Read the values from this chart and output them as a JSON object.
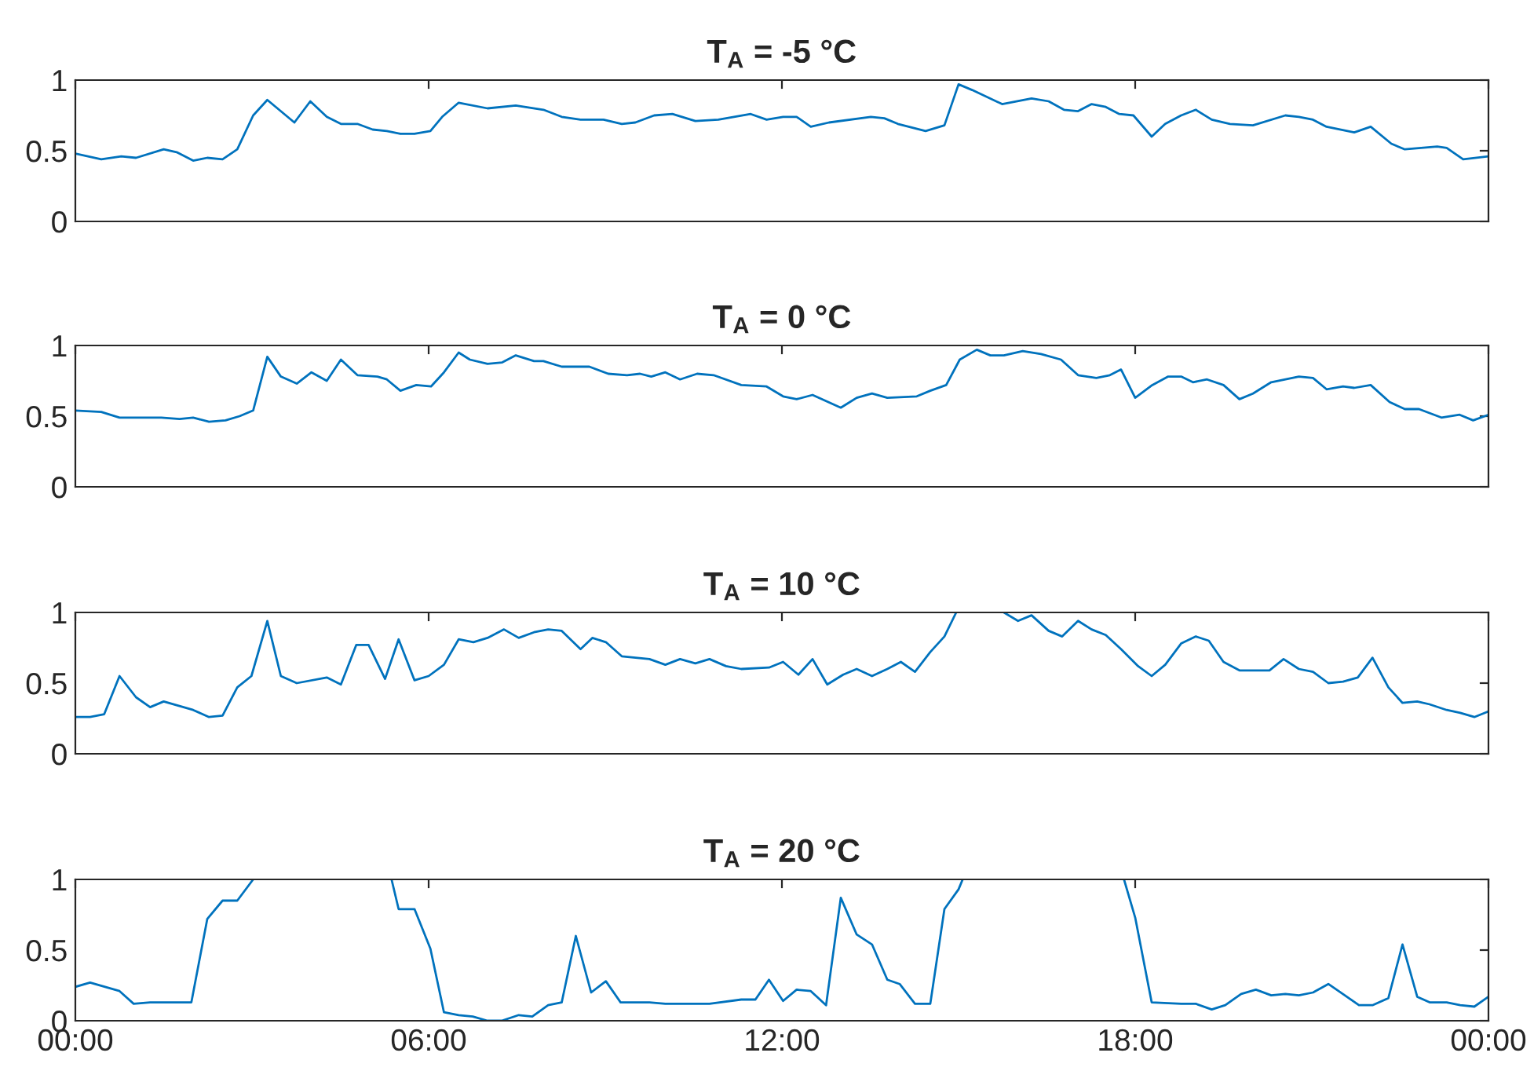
{
  "chart_data": [
    {
      "type": "line",
      "title": "T$_{A}$ = -5 °C",
      "xlim": [
        0,
        24
      ],
      "xticks": [
        {
          "value": 0,
          "label": null
        },
        {
          "value": 6,
          "label": null
        },
        {
          "value": 12,
          "label": null
        },
        {
          "value": 18,
          "label": null
        },
        {
          "value": 24,
          "label": null
        }
      ],
      "ylim": [
        0,
        1
      ],
      "yticks": [
        0,
        0.5,
        1
      ],
      "tick_labels": "y",
      "x": [
        0,
        0.44,
        0.78,
        1.03,
        1.5,
        1.72,
        2.0,
        2.24,
        2.5,
        2.75,
        3.02,
        3.26,
        3.72,
        3.99,
        4.27,
        4.51,
        4.79,
        5.05,
        5.29,
        5.52,
        5.76,
        6.03,
        6.23,
        6.51,
        7.0,
        7.48,
        7.95,
        8.26,
        8.58,
        8.97,
        9.28,
        9.51,
        9.83,
        10.14,
        10.53,
        10.92,
        11.47,
        11.74,
        12.02,
        12.25,
        12.49,
        12.8,
        13.51,
        13.74,
        13.97,
        14.44,
        14.76,
        15.0,
        15.23,
        15.74,
        16.24,
        16.53,
        16.79,
        17.03,
        17.26,
        17.5,
        17.73,
        17.97,
        18.28,
        18.51,
        18.78,
        19.03,
        19.3,
        19.61,
        20.0,
        20.55,
        20.78,
        21.02,
        21.25,
        21.72,
        22.0,
        22.35,
        22.58,
        23.13,
        23.29,
        23.57,
        24.0
      ],
      "series": [
        {
          "color": "#0072bd",
          "values": [
            0.48,
            0.44,
            0.46,
            0.45,
            0.51,
            0.49,
            0.43,
            0.45,
            0.44,
            0.51,
            0.75,
            0.86,
            0.7,
            0.85,
            0.74,
            0.69,
            0.69,
            0.65,
            0.64,
            0.62,
            0.62,
            0.64,
            0.74,
            0.84,
            0.8,
            0.82,
            0.79,
            0.74,
            0.72,
            0.72,
            0.69,
            0.7,
            0.75,
            0.76,
            0.71,
            0.72,
            0.76,
            0.72,
            0.74,
            0.74,
            0.67,
            0.7,
            0.74,
            0.73,
            0.69,
            0.64,
            0.68,
            0.97,
            0.93,
            0.83,
            0.87,
            0.85,
            0.79,
            0.78,
            0.83,
            0.81,
            0.76,
            0.75,
            0.6,
            0.69,
            0.75,
            0.79,
            0.72,
            0.69,
            0.68,
            0.75,
            0.74,
            0.72,
            0.67,
            0.63,
            0.67,
            0.55,
            0.51,
            0.53,
            0.52,
            0.44,
            0.46
          ]
        }
      ]
    },
    {
      "type": "line",
      "title": "T$_{A}$ = 0 °C",
      "xlim": [
        0,
        24
      ],
      "xticks": [
        {
          "value": 0,
          "label": null
        },
        {
          "value": 6,
          "label": null
        },
        {
          "value": 12,
          "label": null
        },
        {
          "value": 18,
          "label": null
        },
        {
          "value": 24,
          "label": null
        }
      ],
      "ylim": [
        0,
        1
      ],
      "yticks": [
        0,
        0.5,
        1
      ],
      "tick_labels": "y",
      "x": [
        0,
        0.44,
        0.75,
        1.46,
        1.77,
        2.0,
        2.27,
        2.55,
        2.79,
        3.02,
        3.26,
        3.49,
        3.76,
        4.01,
        4.27,
        4.51,
        4.79,
        5.13,
        5.29,
        5.52,
        5.79,
        6.04,
        6.26,
        6.51,
        6.7,
        7.0,
        7.25,
        7.48,
        7.79,
        7.95,
        8.26,
        8.73,
        9.05,
        9.37,
        9.59,
        9.78,
        10.02,
        10.27,
        10.56,
        10.84,
        11.31,
        11.74,
        12.02,
        12.25,
        12.52,
        13.0,
        13.27,
        13.53,
        13.79,
        14.29,
        14.52,
        14.79,
        15.02,
        15.31,
        15.54,
        15.77,
        16.09,
        16.4,
        16.74,
        17.03,
        17.34,
        17.57,
        17.76,
        18.0,
        18.29,
        18.56,
        18.78,
        18.98,
        19.22,
        19.5,
        19.77,
        20.0,
        20.31,
        20.78,
        21.02,
        21.25,
        21.53,
        21.72,
        22.0,
        22.32,
        22.58,
        22.82,
        23.2,
        23.51,
        23.74,
        24.0
      ],
      "series": [
        {
          "color": "#0072bd",
          "values": [
            0.54,
            0.53,
            0.49,
            0.49,
            0.48,
            0.49,
            0.46,
            0.47,
            0.5,
            0.54,
            0.92,
            0.78,
            0.73,
            0.81,
            0.75,
            0.9,
            0.79,
            0.78,
            0.76,
            0.68,
            0.72,
            0.71,
            0.81,
            0.95,
            0.9,
            0.87,
            0.88,
            0.93,
            0.89,
            0.89,
            0.85,
            0.85,
            0.8,
            0.79,
            0.8,
            0.78,
            0.81,
            0.76,
            0.8,
            0.79,
            0.72,
            0.71,
            0.64,
            0.62,
            0.65,
            0.56,
            0.63,
            0.66,
            0.63,
            0.64,
            0.68,
            0.72,
            0.9,
            0.97,
            0.93,
            0.93,
            0.96,
            0.94,
            0.9,
            0.79,
            0.77,
            0.79,
            0.83,
            0.63,
            0.72,
            0.78,
            0.78,
            0.74,
            0.76,
            0.72,
            0.62,
            0.66,
            0.74,
            0.78,
            0.77,
            0.69,
            0.71,
            0.7,
            0.72,
            0.6,
            0.55,
            0.55,
            0.49,
            0.51,
            0.47,
            0.51
          ]
        }
      ]
    },
    {
      "type": "line",
      "title": "T$_{A}$ = 10 °C",
      "xlim": [
        0,
        24
      ],
      "xticks": [
        {
          "value": 0,
          "label": null
        },
        {
          "value": 6,
          "label": null
        },
        {
          "value": 12,
          "label": null
        },
        {
          "value": 18,
          "label": null
        },
        {
          "value": 24,
          "label": null
        }
      ],
      "ylim": [
        0,
        1
      ],
      "yticks": [
        0,
        0.5,
        1
      ],
      "tick_labels": "y",
      "x": [
        0,
        0.25,
        0.49,
        0.75,
        1.03,
        1.27,
        1.5,
        2.0,
        2.27,
        2.5,
        2.75,
        2.99,
        3.26,
        3.49,
        3.76,
        4.27,
        4.51,
        4.77,
        4.98,
        5.26,
        5.49,
        5.76,
        6.0,
        6.26,
        6.51,
        6.76,
        7.0,
        7.28,
        7.53,
        7.79,
        8.03,
        8.26,
        8.58,
        8.78,
        9.01,
        9.28,
        9.75,
        10.02,
        10.27,
        10.53,
        10.77,
        11.05,
        11.31,
        11.78,
        12.02,
        12.28,
        12.52,
        12.77,
        13.04,
        13.27,
        13.53,
        13.79,
        14.02,
        14.26,
        14.52,
        14.76,
        14.96,
        15.4,
        15.77,
        16.01,
        16.24,
        16.53,
        16.76,
        17.03,
        17.26,
        17.5,
        17.76,
        18.05,
        18.28,
        18.51,
        18.78,
        19.03,
        19.25,
        19.5,
        19.77,
        20.28,
        20.52,
        20.78,
        21.02,
        21.28,
        21.53,
        21.78,
        22.03,
        22.3,
        22.54,
        22.79,
        23.0,
        23.29,
        23.52,
        23.76,
        24.0
      ],
      "series": [
        {
          "color": "#0072bd",
          "values": [
            0.26,
            0.26,
            0.28,
            0.55,
            0.4,
            0.33,
            0.37,
            0.31,
            0.26,
            0.27,
            0.47,
            0.55,
            0.94,
            0.55,
            0.5,
            0.54,
            0.49,
            0.77,
            0.77,
            0.53,
            0.81,
            0.52,
            0.55,
            0.63,
            0.81,
            0.79,
            0.82,
            0.88,
            0.82,
            0.86,
            0.88,
            0.87,
            0.74,
            0.82,
            0.79,
            0.69,
            0.67,
            0.63,
            0.67,
            0.64,
            0.67,
            0.62,
            0.6,
            0.61,
            0.65,
            0.56,
            0.67,
            0.49,
            0.56,
            0.6,
            0.55,
            0.6,
            0.65,
            0.58,
            0.72,
            0.83,
            1,
            null,
            1,
            0.94,
            0.98,
            0.87,
            0.83,
            0.94,
            0.88,
            0.84,
            0.74,
            0.62,
            0.55,
            0.63,
            0.78,
            0.83,
            0.8,
            0.65,
            0.59,
            0.59,
            0.67,
            0.6,
            0.58,
            0.5,
            0.51,
            0.54,
            0.68,
            0.47,
            0.36,
            0.37,
            0.35,
            0.31,
            0.29,
            0.26,
            0.3
          ]
        }
      ]
    },
    {
      "type": "line",
      "title": "T$_{A}$ = 20 °C",
      "xlim": [
        0,
        24
      ],
      "xticks": [
        {
          "value": 0,
          "label": "00:00"
        },
        {
          "value": 6,
          "label": "06:00"
        },
        {
          "value": 12,
          "label": "12:00"
        },
        {
          "value": 18,
          "label": "18:00"
        },
        {
          "value": 24,
          "label": "00:00"
        }
      ],
      "ylim": [
        0,
        1
      ],
      "yticks": [
        0,
        0.5,
        1
      ],
      "x": [
        0,
        0.25,
        0.75,
        0.99,
        1.27,
        1.72,
        1.97,
        2.24,
        2.5,
        2.75,
        3.02,
        4.2,
        5.37,
        5.49,
        5.76,
        6.03,
        6.26,
        6.51,
        6.75,
        7.0,
        7.24,
        7.53,
        7.76,
        8.03,
        8.26,
        8.5,
        8.76,
        9.01,
        9.26,
        9.75,
        10.02,
        10.53,
        10.77,
        11.31,
        11.55,
        11.78,
        12.02,
        12.25,
        12.49,
        12.75,
        13.0,
        13.27,
        13.53,
        13.79,
        14.0,
        14.26,
        14.52,
        14.76,
        15.0,
        15.07,
        16.4,
        17.81,
        18.0,
        18.28,
        18.78,
        19.03,
        19.3,
        19.53,
        19.8,
        20.05,
        20.31,
        20.55,
        20.78,
        21.02,
        21.28,
        21.56,
        21.8,
        22.03,
        22.3,
        22.54,
        22.79,
        23.0,
        23.29,
        23.52,
        23.76,
        24.0
      ],
      "series": [
        {
          "color": "#0072bd",
          "values": [
            0.24,
            0.27,
            0.21,
            0.12,
            0.13,
            0.13,
            0.13,
            0.72,
            0.85,
            0.85,
            1,
            null,
            1,
            0.79,
            0.79,
            0.51,
            0.06,
            0.04,
            0.03,
            0.0,
            0.0,
            0.04,
            0.03,
            0.11,
            0.13,
            0.6,
            0.2,
            0.28,
            0.13,
            0.13,
            0.12,
            0.12,
            0.12,
            0.15,
            0.15,
            0.29,
            0.14,
            0.22,
            0.21,
            0.11,
            0.87,
            0.61,
            0.54,
            0.29,
            0.26,
            0.12,
            0.12,
            0.79,
            0.93,
            1,
            null,
            1,
            0.73,
            0.13,
            0.12,
            0.12,
            0.08,
            0.11,
            0.19,
            0.22,
            0.18,
            0.19,
            0.18,
            0.2,
            0.26,
            0.18,
            0.11,
            0.11,
            0.16,
            0.54,
            0.17,
            0.13,
            0.13,
            0.11,
            0.1,
            0.17
          ]
        }
      ]
    }
  ]
}
